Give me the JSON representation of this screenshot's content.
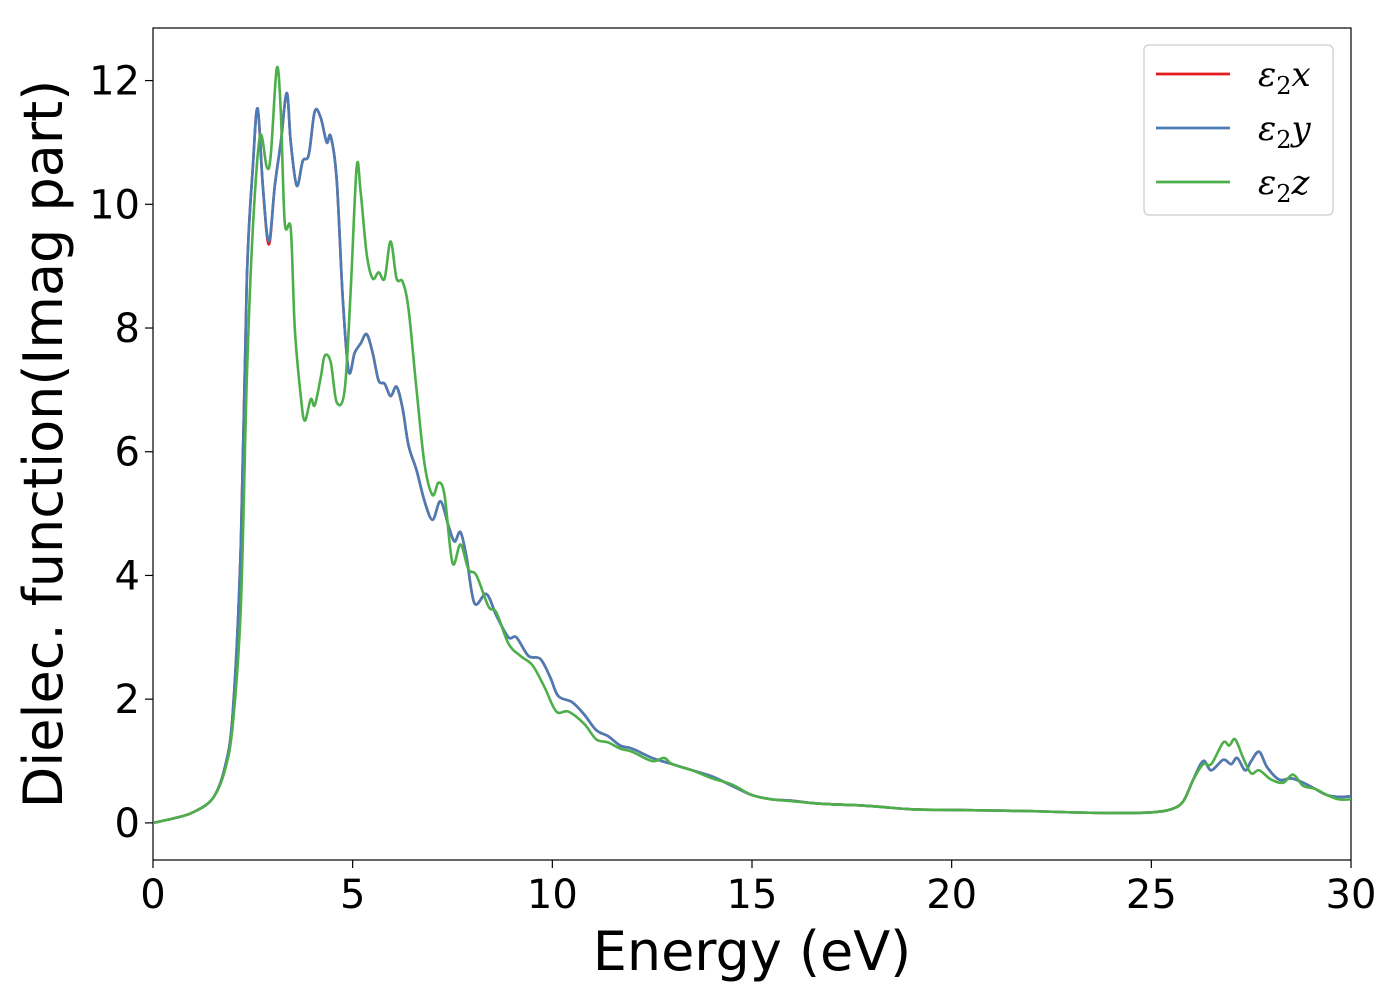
{
  "chart_data": {
    "type": "line",
    "title": "",
    "xlabel": "Energy (eV)",
    "ylabel": "Dielec. function(Imag part)",
    "xlim": [
      0,
      30
    ],
    "ylim": [
      -0.6,
      12.85
    ],
    "x_ticks": [
      0,
      5,
      10,
      15,
      20,
      25,
      30
    ],
    "x_tick_labels": [
      "0",
      "5",
      "10",
      "15",
      "20",
      "25",
      "30"
    ],
    "y_ticks": [
      0,
      2,
      4,
      6,
      8,
      10,
      12
    ],
    "y_tick_labels": [
      "0",
      "2",
      "4",
      "6",
      "8",
      "10",
      "12"
    ],
    "grid": false,
    "legend_position": "top-right",
    "series": [
      {
        "name": "ε2x",
        "legend_base": "ε",
        "legend_sub": "2",
        "legend_suffix": "x",
        "color": "#e41a1c",
        "points": [
          [
            0,
            0
          ],
          [
            0.5,
            0.07
          ],
          [
            1.0,
            0.17
          ],
          [
            1.5,
            0.4
          ],
          [
            1.8,
            0.9
          ],
          [
            2.0,
            1.8
          ],
          [
            2.2,
            4.5
          ],
          [
            2.35,
            8.8
          ],
          [
            2.5,
            10.6
          ],
          [
            2.62,
            11.55
          ],
          [
            2.75,
            10.3
          ],
          [
            2.9,
            9.35
          ],
          [
            3.05,
            10.3
          ],
          [
            3.2,
            11.0
          ],
          [
            3.35,
            11.8
          ],
          [
            3.45,
            11.0
          ],
          [
            3.6,
            10.3
          ],
          [
            3.75,
            10.7
          ],
          [
            3.9,
            10.8
          ],
          [
            4.05,
            11.5
          ],
          [
            4.2,
            11.4
          ],
          [
            4.35,
            11.0
          ],
          [
            4.45,
            11.1
          ],
          [
            4.6,
            10.4
          ],
          [
            4.75,
            8.5
          ],
          [
            4.9,
            7.3
          ],
          [
            5.05,
            7.6
          ],
          [
            5.2,
            7.75
          ],
          [
            5.35,
            7.9
          ],
          [
            5.5,
            7.6
          ],
          [
            5.65,
            7.15
          ],
          [
            5.8,
            7.1
          ],
          [
            5.95,
            6.9
          ],
          [
            6.1,
            7.05
          ],
          [
            6.25,
            6.7
          ],
          [
            6.4,
            6.1
          ],
          [
            6.6,
            5.7
          ],
          [
            6.8,
            5.2
          ],
          [
            7.0,
            4.9
          ],
          [
            7.2,
            5.2
          ],
          [
            7.4,
            4.8
          ],
          [
            7.55,
            4.55
          ],
          [
            7.7,
            4.7
          ],
          [
            7.85,
            4.3
          ],
          [
            8.05,
            3.55
          ],
          [
            8.35,
            3.7
          ],
          [
            8.6,
            3.35
          ],
          [
            8.9,
            3.0
          ],
          [
            9.1,
            3.0
          ],
          [
            9.4,
            2.7
          ],
          [
            9.7,
            2.65
          ],
          [
            9.95,
            2.35
          ],
          [
            10.15,
            2.05
          ],
          [
            10.5,
            1.95
          ],
          [
            10.8,
            1.75
          ],
          [
            11.1,
            1.5
          ],
          [
            11.4,
            1.4
          ],
          [
            11.7,
            1.25
          ],
          [
            12.0,
            1.2
          ],
          [
            12.5,
            1.05
          ],
          [
            13.0,
            0.95
          ],
          [
            13.5,
            0.85
          ],
          [
            14.0,
            0.75
          ],
          [
            14.5,
            0.6
          ],
          [
            15.0,
            0.45
          ],
          [
            15.5,
            0.38
          ],
          [
            16.0,
            0.36
          ],
          [
            16.5,
            0.32
          ],
          [
            17.0,
            0.3
          ],
          [
            17.5,
            0.29
          ],
          [
            18.0,
            0.27
          ],
          [
            19.0,
            0.22
          ],
          [
            20.0,
            0.21
          ],
          [
            21.0,
            0.2
          ],
          [
            22.0,
            0.19
          ],
          [
            23.0,
            0.17
          ],
          [
            24.0,
            0.16
          ],
          [
            25.0,
            0.17
          ],
          [
            25.5,
            0.22
          ],
          [
            25.8,
            0.35
          ],
          [
            26.05,
            0.7
          ],
          [
            26.3,
            1.0
          ],
          [
            26.5,
            0.85
          ],
          [
            26.8,
            1.02
          ],
          [
            27.0,
            0.95
          ],
          [
            27.15,
            1.05
          ],
          [
            27.35,
            0.85
          ],
          [
            27.5,
            1.0
          ],
          [
            27.7,
            1.15
          ],
          [
            27.9,
            0.9
          ],
          [
            28.2,
            0.7
          ],
          [
            28.5,
            0.72
          ],
          [
            28.8,
            0.65
          ],
          [
            29.1,
            0.55
          ],
          [
            29.4,
            0.45
          ],
          [
            29.7,
            0.42
          ],
          [
            30.0,
            0.43
          ]
        ]
      },
      {
        "name": "ε2y",
        "legend_base": "ε",
        "legend_sub": "2",
        "legend_suffix": "y",
        "color": "#4a7cb5",
        "points": [
          [
            0,
            0
          ],
          [
            0.5,
            0.07
          ],
          [
            1.0,
            0.17
          ],
          [
            1.5,
            0.4
          ],
          [
            1.8,
            0.9
          ],
          [
            2.0,
            1.8
          ],
          [
            2.2,
            4.5
          ],
          [
            2.35,
            8.8
          ],
          [
            2.5,
            10.6
          ],
          [
            2.62,
            11.55
          ],
          [
            2.75,
            10.3
          ],
          [
            2.9,
            9.4
          ],
          [
            3.05,
            10.3
          ],
          [
            3.2,
            11.0
          ],
          [
            3.35,
            11.8
          ],
          [
            3.45,
            11.0
          ],
          [
            3.6,
            10.3
          ],
          [
            3.75,
            10.7
          ],
          [
            3.9,
            10.8
          ],
          [
            4.05,
            11.5
          ],
          [
            4.2,
            11.4
          ],
          [
            4.35,
            11.0
          ],
          [
            4.45,
            11.1
          ],
          [
            4.6,
            10.4
          ],
          [
            4.75,
            8.5
          ],
          [
            4.9,
            7.3
          ],
          [
            5.05,
            7.6
          ],
          [
            5.2,
            7.75
          ],
          [
            5.35,
            7.9
          ],
          [
            5.5,
            7.6
          ],
          [
            5.65,
            7.15
          ],
          [
            5.8,
            7.1
          ],
          [
            5.95,
            6.9
          ],
          [
            6.1,
            7.05
          ],
          [
            6.25,
            6.7
          ],
          [
            6.4,
            6.1
          ],
          [
            6.6,
            5.7
          ],
          [
            6.8,
            5.2
          ],
          [
            7.0,
            4.9
          ],
          [
            7.2,
            5.2
          ],
          [
            7.4,
            4.8
          ],
          [
            7.55,
            4.55
          ],
          [
            7.7,
            4.7
          ],
          [
            7.85,
            4.3
          ],
          [
            8.05,
            3.55
          ],
          [
            8.35,
            3.7
          ],
          [
            8.6,
            3.35
          ],
          [
            8.9,
            3.0
          ],
          [
            9.1,
            3.0
          ],
          [
            9.4,
            2.7
          ],
          [
            9.7,
            2.65
          ],
          [
            9.95,
            2.35
          ],
          [
            10.15,
            2.05
          ],
          [
            10.5,
            1.95
          ],
          [
            10.8,
            1.75
          ],
          [
            11.1,
            1.5
          ],
          [
            11.4,
            1.4
          ],
          [
            11.7,
            1.25
          ],
          [
            12.0,
            1.2
          ],
          [
            12.5,
            1.05
          ],
          [
            13.0,
            0.95
          ],
          [
            13.5,
            0.85
          ],
          [
            14.0,
            0.75
          ],
          [
            14.5,
            0.6
          ],
          [
            15.0,
            0.45
          ],
          [
            15.5,
            0.38
          ],
          [
            16.0,
            0.36
          ],
          [
            16.5,
            0.32
          ],
          [
            17.0,
            0.3
          ],
          [
            17.5,
            0.29
          ],
          [
            18.0,
            0.27
          ],
          [
            19.0,
            0.22
          ],
          [
            20.0,
            0.21
          ],
          [
            21.0,
            0.2
          ],
          [
            22.0,
            0.19
          ],
          [
            23.0,
            0.17
          ],
          [
            24.0,
            0.16
          ],
          [
            25.0,
            0.17
          ],
          [
            25.5,
            0.22
          ],
          [
            25.8,
            0.35
          ],
          [
            26.05,
            0.7
          ],
          [
            26.3,
            1.0
          ],
          [
            26.5,
            0.85
          ],
          [
            26.8,
            1.02
          ],
          [
            27.0,
            0.95
          ],
          [
            27.15,
            1.05
          ],
          [
            27.35,
            0.85
          ],
          [
            27.5,
            1.0
          ],
          [
            27.7,
            1.15
          ],
          [
            27.9,
            0.9
          ],
          [
            28.2,
            0.7
          ],
          [
            28.5,
            0.72
          ],
          [
            28.8,
            0.65
          ],
          [
            29.1,
            0.55
          ],
          [
            29.4,
            0.45
          ],
          [
            29.7,
            0.42
          ],
          [
            30.0,
            0.43
          ]
        ]
      },
      {
        "name": "ε2z",
        "legend_base": "ε",
        "legend_sub": "2",
        "legend_suffix": "z",
        "color": "#4daf4a",
        "points": [
          [
            0,
            0
          ],
          [
            0.5,
            0.07
          ],
          [
            1.0,
            0.17
          ],
          [
            1.5,
            0.4
          ],
          [
            1.8,
            0.85
          ],
          [
            2.0,
            1.6
          ],
          [
            2.2,
            3.5
          ],
          [
            2.35,
            7.2
          ],
          [
            2.5,
            9.6
          ],
          [
            2.68,
            11.1
          ],
          [
            2.85,
            10.6
          ],
          [
            2.95,
            10.8
          ],
          [
            3.1,
            12.2
          ],
          [
            3.2,
            11.5
          ],
          [
            3.3,
            9.7
          ],
          [
            3.45,
            9.6
          ],
          [
            3.55,
            8.0
          ],
          [
            3.7,
            6.9
          ],
          [
            3.8,
            6.5
          ],
          [
            3.95,
            6.85
          ],
          [
            4.05,
            6.75
          ],
          [
            4.2,
            7.2
          ],
          [
            4.3,
            7.55
          ],
          [
            4.45,
            7.45
          ],
          [
            4.6,
            6.8
          ],
          [
            4.8,
            7.0
          ],
          [
            4.95,
            8.6
          ],
          [
            5.1,
            10.6
          ],
          [
            5.2,
            10.2
          ],
          [
            5.35,
            9.2
          ],
          [
            5.5,
            8.8
          ],
          [
            5.65,
            8.9
          ],
          [
            5.8,
            8.8
          ],
          [
            5.95,
            9.4
          ],
          [
            6.1,
            8.8
          ],
          [
            6.25,
            8.75
          ],
          [
            6.4,
            8.3
          ],
          [
            6.6,
            7.0
          ],
          [
            6.8,
            5.8
          ],
          [
            7.0,
            5.3
          ],
          [
            7.15,
            5.5
          ],
          [
            7.3,
            5.3
          ],
          [
            7.5,
            4.2
          ],
          [
            7.7,
            4.5
          ],
          [
            7.9,
            4.1
          ],
          [
            8.1,
            4.0
          ],
          [
            8.4,
            3.5
          ],
          [
            8.6,
            3.4
          ],
          [
            8.9,
            2.9
          ],
          [
            9.2,
            2.7
          ],
          [
            9.5,
            2.55
          ],
          [
            9.8,
            2.2
          ],
          [
            10.1,
            1.8
          ],
          [
            10.4,
            1.8
          ],
          [
            10.8,
            1.6
          ],
          [
            11.1,
            1.35
          ],
          [
            11.4,
            1.3
          ],
          [
            11.7,
            1.2
          ],
          [
            12.0,
            1.15
          ],
          [
            12.5,
            1.0
          ],
          [
            12.8,
            1.05
          ],
          [
            13.0,
            0.95
          ],
          [
            13.5,
            0.85
          ],
          [
            14.0,
            0.72
          ],
          [
            14.5,
            0.62
          ],
          [
            15.0,
            0.45
          ],
          [
            15.5,
            0.38
          ],
          [
            16.0,
            0.35
          ],
          [
            16.5,
            0.32
          ],
          [
            17.0,
            0.3
          ],
          [
            17.5,
            0.29
          ],
          [
            18.0,
            0.27
          ],
          [
            19.0,
            0.22
          ],
          [
            20.0,
            0.21
          ],
          [
            21.0,
            0.2
          ],
          [
            22.0,
            0.19
          ],
          [
            23.0,
            0.17
          ],
          [
            24.0,
            0.16
          ],
          [
            25.0,
            0.17
          ],
          [
            25.5,
            0.22
          ],
          [
            25.8,
            0.35
          ],
          [
            26.05,
            0.7
          ],
          [
            26.3,
            0.95
          ],
          [
            26.5,
            0.95
          ],
          [
            26.8,
            1.3
          ],
          [
            26.95,
            1.25
          ],
          [
            27.1,
            1.35
          ],
          [
            27.3,
            1.05
          ],
          [
            27.5,
            0.8
          ],
          [
            27.7,
            0.85
          ],
          [
            28.0,
            0.7
          ],
          [
            28.3,
            0.65
          ],
          [
            28.55,
            0.78
          ],
          [
            28.8,
            0.6
          ],
          [
            29.1,
            0.55
          ],
          [
            29.4,
            0.45
          ],
          [
            29.7,
            0.38
          ],
          [
            30.0,
            0.38
          ]
        ]
      }
    ]
  }
}
